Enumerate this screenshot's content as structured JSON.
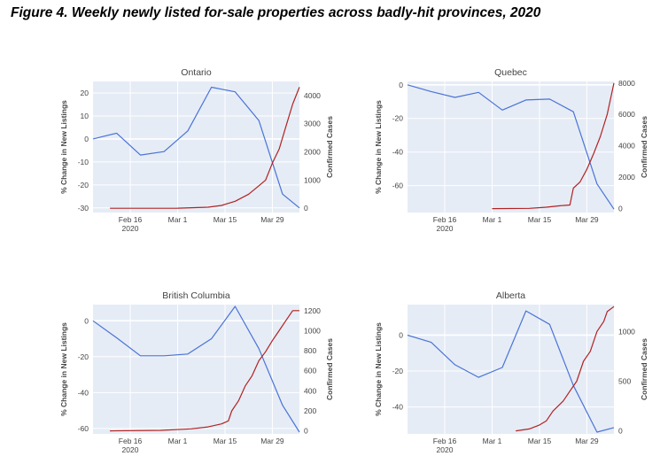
{
  "page": {
    "title": "Figure 4. Weekly newly listed for-sale properties across badly-hit provinces, 2020"
  },
  "colors": {
    "plot_bg": "#e5ecf6",
    "grid": "#ffffff",
    "listings_line": "#4a73d6",
    "cases_line": "#b22222",
    "text": "#444444"
  },
  "chart_data": [
    {
      "type": "line",
      "title": "Ontario",
      "ylabel": "% Change in New Listings",
      "y2label": "Confirmed Cases",
      "xticks": [
        {
          "date": "2020-02-16",
          "label": "Feb 16",
          "sublabel": "2020"
        },
        {
          "date": "2020-03-01",
          "label": "Mar 1"
        },
        {
          "date": "2020-03-15",
          "label": "Mar 15"
        },
        {
          "date": "2020-03-29",
          "label": "Mar 29"
        }
      ],
      "xlim": [
        "2020-02-05",
        "2020-04-06"
      ],
      "ylim": [
        -32,
        25
      ],
      "yticks": [
        -30,
        -20,
        -10,
        0,
        10,
        20
      ],
      "y2lim": [
        -150,
        4500
      ],
      "y2ticks": [
        0,
        1000,
        2000,
        3000,
        4000
      ],
      "series": [
        {
          "axis": "left",
          "color": "#4a73d6",
          "points": [
            [
              "2020-02-05",
              0
            ],
            [
              "2020-02-12",
              2.5
            ],
            [
              "2020-02-19",
              -7
            ],
            [
              "2020-02-26",
              -5.5
            ],
            [
              "2020-03-04",
              3.5
            ],
            [
              "2020-03-11",
              22.5
            ],
            [
              "2020-03-18",
              20.5
            ],
            [
              "2020-03-25",
              8
            ],
            [
              "2020-04-01",
              -24
            ],
            [
              "2020-04-06",
              -30
            ]
          ]
        },
        {
          "axis": "right",
          "color": "#b22222",
          "points": [
            [
              "2020-02-10",
              0
            ],
            [
              "2020-02-20",
              0
            ],
            [
              "2020-03-01",
              3
            ],
            [
              "2020-03-10",
              40
            ],
            [
              "2020-03-14",
              100
            ],
            [
              "2020-03-18",
              250
            ],
            [
              "2020-03-22",
              500
            ],
            [
              "2020-03-25",
              800
            ],
            [
              "2020-03-27",
              1000
            ],
            [
              "2020-03-29",
              1600
            ],
            [
              "2020-03-31",
              2100
            ],
            [
              "2020-04-02",
              2900
            ],
            [
              "2020-04-04",
              3700
            ],
            [
              "2020-04-06",
              4300
            ]
          ]
        }
      ]
    },
    {
      "type": "line",
      "title": "Quebec",
      "ylabel": "% Change in New Listings",
      "y2label": "Confirmed Cases",
      "xticks": [
        {
          "date": "2020-02-16",
          "label": "Feb 16",
          "sublabel": "2020"
        },
        {
          "date": "2020-03-01",
          "label": "Mar 1"
        },
        {
          "date": "2020-03-15",
          "label": "Mar 15"
        },
        {
          "date": "2020-03-29",
          "label": "Mar 29"
        }
      ],
      "xlim": [
        "2020-02-05",
        "2020-04-06"
      ],
      "ylim": [
        -76,
        2
      ],
      "yticks": [
        -60,
        -40,
        -20,
        0
      ],
      "y2lim": [
        -250,
        8100
      ],
      "y2ticks": [
        0,
        2000,
        4000,
        6000,
        8000
      ],
      "series": [
        {
          "axis": "left",
          "color": "#4a73d6",
          "points": [
            [
              "2020-02-05",
              0
            ],
            [
              "2020-02-12",
              -4
            ],
            [
              "2020-02-19",
              -7.5
            ],
            [
              "2020-02-26",
              -4.5
            ],
            [
              "2020-03-04",
              -15
            ],
            [
              "2020-03-11",
              -9
            ],
            [
              "2020-03-18",
              -8.5
            ],
            [
              "2020-03-25",
              -16
            ],
            [
              "2020-04-01",
              -59
            ],
            [
              "2020-04-06",
              -74
            ]
          ]
        },
        {
          "axis": "right",
          "color": "#b22222",
          "points": [
            [
              "2020-03-01",
              0
            ],
            [
              "2020-03-12",
              15
            ],
            [
              "2020-03-17",
              90
            ],
            [
              "2020-03-21",
              180
            ],
            [
              "2020-03-24",
              230
            ],
            [
              "2020-03-25",
              1300
            ],
            [
              "2020-03-27",
              1700
            ],
            [
              "2020-03-29",
              2500
            ],
            [
              "2020-03-31",
              3500
            ],
            [
              "2020-04-02",
              4600
            ],
            [
              "2020-04-04",
              6000
            ],
            [
              "2020-04-06",
              8000
            ]
          ]
        }
      ]
    },
    {
      "type": "line",
      "title": "British Columbia",
      "ylabel": "% Change in New Listings",
      "y2label": "Confirmed Cases",
      "xticks": [
        {
          "date": "2020-02-16",
          "label": "Feb 16",
          "sublabel": "2020"
        },
        {
          "date": "2020-03-01",
          "label": "Mar 1"
        },
        {
          "date": "2020-03-15",
          "label": "Mar 15"
        },
        {
          "date": "2020-03-29",
          "label": "Mar 29"
        }
      ],
      "xlim": [
        "2020-02-05",
        "2020-04-06"
      ],
      "ylim": [
        -63,
        9
      ],
      "yticks": [
        -60,
        -40,
        -20,
        0
      ],
      "y2lim": [
        -30,
        1260
      ],
      "y2ticks": [
        0,
        200,
        400,
        600,
        800,
        1000,
        1200
      ],
      "series": [
        {
          "axis": "left",
          "color": "#4a73d6",
          "points": [
            [
              "2020-02-05",
              0
            ],
            [
              "2020-02-12",
              -9.5
            ],
            [
              "2020-02-19",
              -19.5
            ],
            [
              "2020-02-26",
              -19.5
            ],
            [
              "2020-03-04",
              -18.5
            ],
            [
              "2020-03-11",
              -10
            ],
            [
              "2020-03-18",
              8
            ],
            [
              "2020-03-25",
              -15.5
            ],
            [
              "2020-04-01",
              -47
            ],
            [
              "2020-04-06",
              -62
            ]
          ]
        },
        {
          "axis": "right",
          "color": "#b22222",
          "points": [
            [
              "2020-02-10",
              0
            ],
            [
              "2020-02-25",
              5
            ],
            [
              "2020-03-05",
              20
            ],
            [
              "2020-03-10",
              40
            ],
            [
              "2020-03-14",
              70
            ],
            [
              "2020-03-16",
              100
            ],
            [
              "2020-03-17",
              200
            ],
            [
              "2020-03-19",
              300
            ],
            [
              "2020-03-21",
              450
            ],
            [
              "2020-03-23",
              550
            ],
            [
              "2020-03-25",
              700
            ],
            [
              "2020-03-27",
              790
            ],
            [
              "2020-03-29",
              900
            ],
            [
              "2020-03-31",
              1000
            ],
            [
              "2020-04-02",
              1100
            ],
            [
              "2020-04-04",
              1200
            ],
            [
              "2020-04-06",
              1200
            ]
          ]
        }
      ]
    },
    {
      "type": "line",
      "title": "Alberta",
      "ylabel": "% Change in New Listings",
      "y2label": "Confirmed Cases",
      "xticks": [
        {
          "date": "2020-02-16",
          "label": "Feb 16",
          "sublabel": "2020"
        },
        {
          "date": "2020-03-01",
          "label": "Mar 1"
        },
        {
          "date": "2020-03-15",
          "label": "Mar 15"
        },
        {
          "date": "2020-03-29",
          "label": "Mar 29"
        }
      ],
      "xlim": [
        "2020-02-05",
        "2020-04-06"
      ],
      "ylim": [
        -55,
        17
      ],
      "yticks": [
        -40,
        -20,
        0
      ],
      "y2lim": [
        -30,
        1270
      ],
      "y2ticks": [
        0,
        500,
        1000
      ],
      "series": [
        {
          "axis": "left",
          "color": "#4a73d6",
          "points": [
            [
              "2020-02-05",
              0
            ],
            [
              "2020-02-12",
              -4
            ],
            [
              "2020-02-19",
              -16.5
            ],
            [
              "2020-02-26",
              -23.5
            ],
            [
              "2020-03-04",
              -18
            ],
            [
              "2020-03-11",
              13.5
            ],
            [
              "2020-03-18",
              6
            ],
            [
              "2020-03-25",
              -28
            ],
            [
              "2020-04-01",
              -54
            ],
            [
              "2020-04-06",
              -51.5
            ]
          ]
        },
        {
          "axis": "right",
          "color": "#b22222",
          "points": [
            [
              "2020-03-08",
              0
            ],
            [
              "2020-03-12",
              20
            ],
            [
              "2020-03-15",
              60
            ],
            [
              "2020-03-17",
              100
            ],
            [
              "2020-03-19",
              200
            ],
            [
              "2020-03-22",
              300
            ],
            [
              "2020-03-24",
              400
            ],
            [
              "2020-03-26",
              500
            ],
            [
              "2020-03-28",
              700
            ],
            [
              "2020-03-30",
              800
            ],
            [
              "2020-04-01",
              1000
            ],
            [
              "2020-04-03",
              1100
            ],
            [
              "2020-04-04",
              1200
            ],
            [
              "2020-04-06",
              1250
            ]
          ]
        }
      ]
    }
  ]
}
